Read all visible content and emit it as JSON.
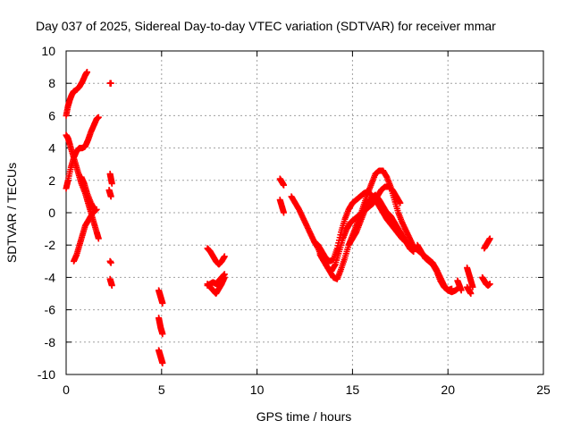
{
  "chart_data": {
    "type": "scatter",
    "title": "Day 037 of 2025, Sidereal Day-to-day VTEC variation (SDTVAR) for receiver mmar",
    "xlabel": "GPS time / hours",
    "ylabel": "SDTVAR / TECUs",
    "xlim": [
      0,
      25
    ],
    "ylim": [
      -10,
      10
    ],
    "xticks": [
      "0",
      "5",
      "10",
      "15",
      "20",
      "25"
    ],
    "yticks": [
      "-10",
      "-8",
      "-6",
      "-4",
      "-2",
      "0",
      "2",
      "4",
      "6",
      "8",
      "10"
    ],
    "grid": true,
    "marker": "+",
    "color": "#ff0000",
    "series": [
      {
        "name": "SDTVAR",
        "segments": [
          {
            "x": [
              0.0,
              0.1,
              0.2,
              0.3,
              0.4,
              0.55,
              0.7,
              0.85,
              1.0,
              1.1
            ],
            "y": [
              6.0,
              6.6,
              7.0,
              7.3,
              7.5,
              7.6,
              7.8,
              8.1,
              8.5,
              8.7
            ]
          },
          {
            "x": [
              0.0,
              0.1,
              0.2,
              0.35,
              0.5,
              0.65,
              0.8,
              1.0,
              1.15,
              1.3,
              1.45,
              1.6,
              1.7
            ],
            "y": [
              4.8,
              4.6,
              4.2,
              3.6,
              3.0,
              2.4,
              1.8,
              1.2,
              0.6,
              0.0,
              -0.6,
              -1.2,
              -1.6
            ]
          },
          {
            "x": [
              0.0,
              0.1,
              0.25,
              0.4,
              0.55,
              0.7,
              0.85,
              1.0,
              1.15,
              1.3,
              1.45,
              1.6,
              1.7
            ],
            "y": [
              1.5,
              2.0,
              2.8,
              3.4,
              3.8,
              4.0,
              4.0,
              4.1,
              4.5,
              5.0,
              5.4,
              5.8,
              5.9
            ]
          },
          {
            "x": [
              0.4,
              0.55,
              0.7,
              0.85,
              1.0,
              1.2,
              1.4,
              1.6
            ],
            "y": [
              -3.0,
              -2.6,
              -2.0,
              -1.4,
              -0.8,
              -0.4,
              0.0,
              0.2
            ]
          },
          {
            "x": [
              0.8,
              0.95,
              1.1,
              1.3,
              1.5
            ],
            "y": [
              2.2,
              1.8,
              1.2,
              0.6,
              0.2
            ]
          },
          {
            "x": [
              2.3,
              2.35
            ],
            "y": [
              8.0,
              8.0
            ]
          },
          {
            "x": [
              2.3,
              2.35,
              2.4
            ],
            "y": [
              2.4,
              2.1,
              1.8
            ]
          },
          {
            "x": [
              2.25,
              2.3,
              2.35
            ],
            "y": [
              1.4,
              1.2,
              1.0
            ]
          },
          {
            "x": [
              2.3,
              2.35
            ],
            "y": [
              -3.0,
              -3.1
            ]
          },
          {
            "x": [
              2.3,
              2.35,
              2.4
            ],
            "y": [
              -4.1,
              -4.3,
              -4.5
            ]
          },
          {
            "x": [
              4.85,
              4.9,
              4.95,
              5.0,
              5.05
            ],
            "y": [
              -4.8,
              -5.0,
              -5.2,
              -5.4,
              -5.6
            ]
          },
          {
            "x": [
              4.85,
              4.9,
              4.95,
              5.0,
              5.05
            ],
            "y": [
              -6.5,
              -6.8,
              -7.1,
              -7.3,
              -7.5
            ]
          },
          {
            "x": [
              4.85,
              4.9,
              4.95,
              5.0,
              5.05
            ],
            "y": [
              -8.5,
              -8.7,
              -8.9,
              -9.1,
              -9.3
            ]
          },
          {
            "x": [
              7.4,
              7.55,
              7.7,
              7.85,
              8.0,
              8.15,
              8.3
            ],
            "y": [
              -2.2,
              -2.4,
              -2.7,
              -3.0,
              -3.2,
              -3.0,
              -2.7
            ]
          },
          {
            "x": [
              7.4,
              7.55,
              7.7,
              7.85,
              8.0,
              8.15,
              8.3
            ],
            "y": [
              -4.4,
              -4.6,
              -4.8,
              -5.0,
              -4.7,
              -4.4,
              -4.0
            ]
          },
          {
            "x": [
              7.4,
              7.55,
              7.7,
              7.85,
              8.0,
              8.15,
              8.3
            ],
            "y": [
              -4.5,
              -4.4,
              -4.3,
              -4.4,
              -4.2,
              -4.0,
              -3.8
            ]
          },
          {
            "x": [
              11.2,
              11.3,
              11.4
            ],
            "y": [
              2.1,
              1.9,
              1.7
            ]
          },
          {
            "x": [
              11.2,
              11.3,
              11.4
            ],
            "y": [
              0.8,
              0.4,
              0.0
            ]
          },
          {
            "x": [
              11.8,
              12.0,
              12.2,
              12.4,
              12.6,
              12.8,
              13.0,
              13.2,
              13.4,
              13.6,
              13.8,
              14.0,
              14.2,
              14.4,
              14.6,
              14.8,
              15.0,
              15.2,
              15.4,
              15.6,
              15.8,
              16.0,
              16.2,
              16.4,
              16.6,
              16.8,
              17.0,
              17.2,
              17.4,
              17.6,
              17.8,
              18.0,
              18.2,
              18.4,
              18.6,
              18.8,
              19.0,
              19.2,
              19.4,
              19.6,
              19.8,
              20.0,
              20.2,
              20.4,
              20.6
            ],
            "y": [
              1.0,
              0.6,
              0.2,
              -0.3,
              -0.8,
              -1.3,
              -1.8,
              -2.2,
              -2.8,
              -3.2,
              -3.6,
              -4.0,
              -4.1,
              -3.5,
              -2.8,
              -2.0,
              -1.4,
              -0.8,
              -0.2,
              0.5,
              1.2,
              1.8,
              2.4,
              2.6,
              2.6,
              2.2,
              1.6,
              0.8,
              0.0,
              -0.6,
              -1.1,
              -1.6,
              -2.1,
              -2.3,
              -2.5,
              -2.7,
              -2.9,
              -3.1,
              -3.5,
              -4.0,
              -4.5,
              -4.8,
              -4.9,
              -4.8,
              -4.6
            ]
          },
          {
            "x": [
              13.0,
              13.2,
              13.4,
              13.6,
              13.8,
              14.0,
              14.2,
              14.4,
              14.6,
              14.8,
              15.0,
              15.2,
              15.4,
              15.6,
              15.8,
              16.0,
              16.2,
              16.4,
              16.6,
              16.8,
              17.0,
              17.2,
              17.4,
              17.6,
              17.8,
              18.0,
              18.2
            ],
            "y": [
              -1.8,
              -2.0,
              -2.4,
              -2.8,
              -3.0,
              -2.9,
              -2.2,
              -1.2,
              -0.4,
              0.2,
              0.6,
              0.8,
              1.0,
              1.2,
              1.3,
              1.1,
              0.8,
              0.4,
              0.0,
              -0.4,
              -0.7,
              -1.0,
              -1.3,
              -1.6,
              -1.8,
              -2.0,
              -2.1
            ]
          },
          {
            "x": [
              13.3,
              13.5,
              13.7,
              13.9,
              14.1,
              14.3,
              14.5,
              14.7,
              14.9,
              15.1,
              15.3,
              15.5,
              15.7,
              15.9,
              16.1,
              16.3,
              16.5,
              16.7,
              16.9,
              17.1,
              17.3,
              17.5
            ],
            "y": [
              -2.6,
              -3.0,
              -3.4,
              -3.6,
              -3.2,
              -2.4,
              -1.6,
              -1.0,
              -0.6,
              -0.4,
              -0.2,
              0.0,
              0.2,
              0.4,
              0.6,
              1.0,
              1.4,
              1.6,
              1.6,
              1.4,
              1.0,
              0.6
            ]
          },
          {
            "x": [
              14.8,
              15.0,
              15.2,
              15.4,
              15.6,
              15.8,
              16.0,
              16.2,
              16.4,
              16.6,
              16.8,
              17.0,
              17.2,
              17.4,
              17.6,
              17.8,
              18.0,
              18.2
            ],
            "y": [
              -2.0,
              -1.6,
              -1.2,
              -0.6,
              0.0,
              0.6,
              0.9,
              1.1,
              0.8,
              0.4,
              0.0,
              -0.2,
              -0.6,
              -1.0,
              -1.4,
              -1.8,
              -2.2,
              -2.4
            ]
          },
          {
            "x": [
              18.4,
              18.6,
              18.8,
              19.0,
              19.2,
              19.4,
              19.6,
              19.8,
              20.0,
              20.2
            ],
            "y": [
              -2.0,
              -2.4,
              -2.8,
              -3.0,
              -3.2,
              -3.6,
              -4.2,
              -4.6,
              -4.8,
              -4.7
            ]
          },
          {
            "x": [
              20.5,
              20.6,
              20.7
            ],
            "y": [
              -4.2,
              -4.5,
              -4.8
            ]
          },
          {
            "x": [
              21.0,
              21.1,
              21.2,
              21.3
            ],
            "y": [
              -3.4,
              -3.8,
              -4.2,
              -4.6
            ]
          },
          {
            "x": [
              21.0,
              21.1,
              21.2
            ],
            "y": [
              -4.6,
              -4.8,
              -5.0
            ]
          },
          {
            "x": [
              21.8,
              21.9,
              22.0,
              22.1,
              22.2
            ],
            "y": [
              -4.0,
              -4.2,
              -4.4,
              -4.5,
              -4.4
            ]
          },
          {
            "x": [
              21.9,
              22.0,
              22.1,
              22.2
            ],
            "y": [
              -2.2,
              -2.0,
              -1.8,
              -1.6
            ]
          }
        ]
      }
    ]
  }
}
